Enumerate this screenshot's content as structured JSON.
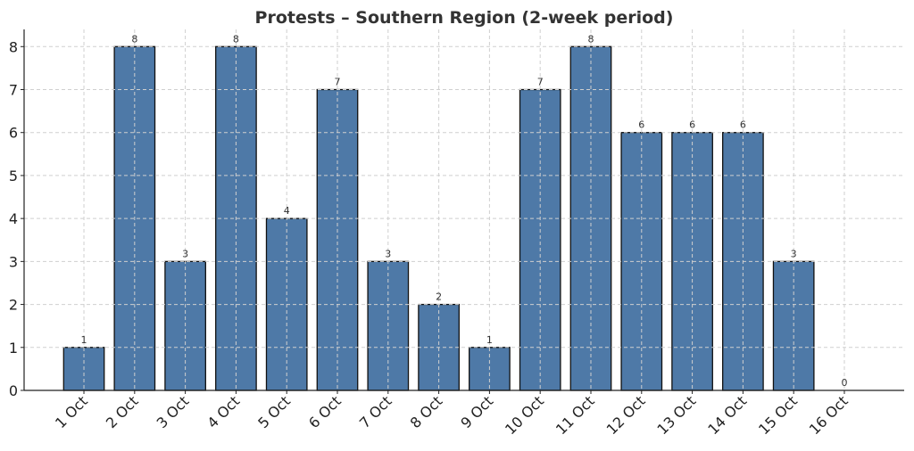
{
  "chart_data": {
    "type": "bar",
    "title": "Protests – Southern Region (2-week period)",
    "xlabel": "",
    "ylabel": "",
    "categories": [
      "1 Oct",
      "2 Oct",
      "3 Oct",
      "4 Oct",
      "5 Oct",
      "6 Oct",
      "7 Oct",
      "8 Oct",
      "9 Oct",
      "10 Oct",
      "11 Oct",
      "12 Oct",
      "13 Oct",
      "14 Oct",
      "15 Oct",
      "16 Oct"
    ],
    "values": [
      1,
      8,
      3,
      8,
      4,
      7,
      3,
      2,
      1,
      7,
      8,
      6,
      6,
      6,
      3,
      0
    ],
    "ylim": [
      0,
      8.4
    ],
    "yticks": [
      0,
      1,
      2,
      3,
      4,
      5,
      6,
      7,
      8
    ],
    "grid": true,
    "bar_color": "#4e79a7",
    "edge_color": "#111111"
  }
}
